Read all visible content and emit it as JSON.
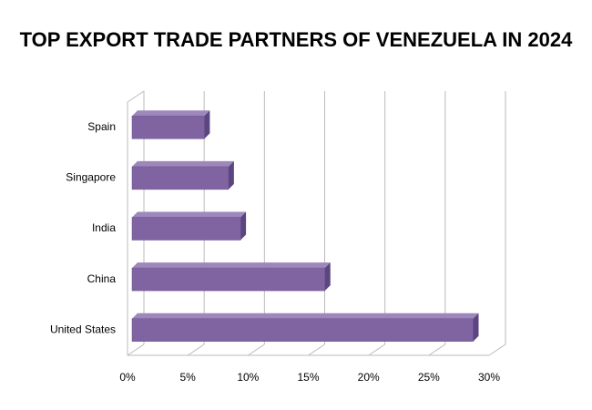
{
  "chart_data": {
    "type": "bar3d",
    "orientation": "horizontal",
    "title": "TOP EXPORT TRADE PARTNERS OF VENEZUELA IN 2024",
    "categories": [
      "Spain",
      "Singapore",
      "India",
      "China",
      "United States"
    ],
    "values": [
      6,
      8,
      9,
      16,
      28.3
    ],
    "color": "#8064a2",
    "xlim": [
      0,
      30
    ],
    "xticks": [
      {
        "value": 0,
        "label": "0%"
      },
      {
        "value": 5,
        "label": "5%"
      },
      {
        "value": 10,
        "label": "10%"
      },
      {
        "value": 15,
        "label": "15%"
      },
      {
        "value": 20,
        "label": "20%"
      },
      {
        "value": 25,
        "label": "25%"
      },
      {
        "value": 30,
        "label": "30%"
      }
    ],
    "grid": true
  }
}
